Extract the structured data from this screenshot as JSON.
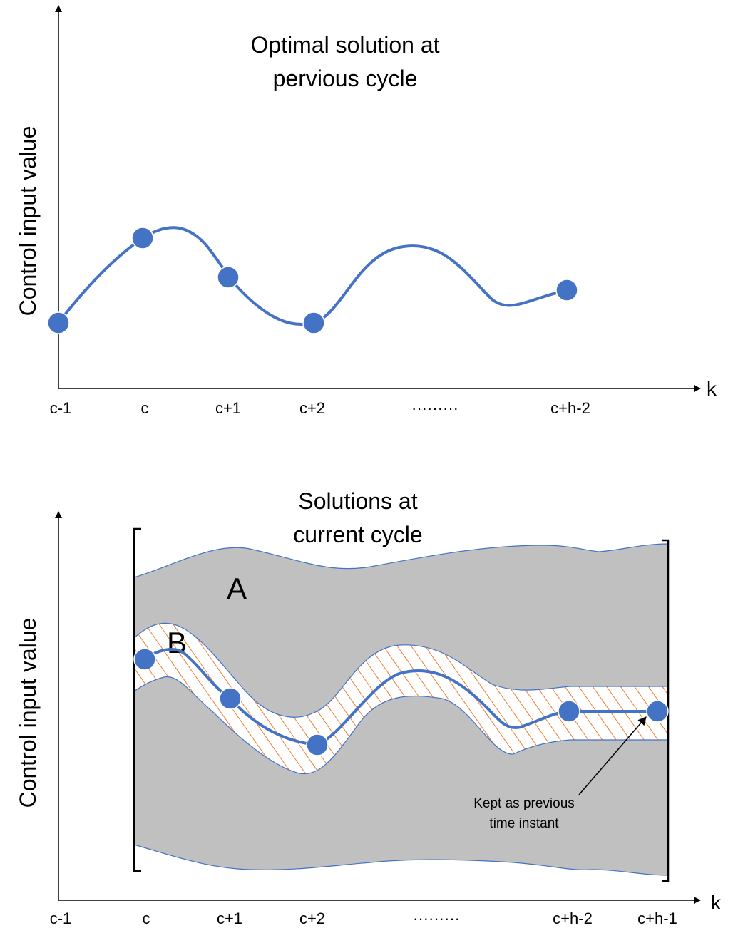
{
  "top_panel": {
    "title_line1": "Optimal solution at",
    "title_line2": "pervious cycle",
    "y_axis_label": "Control input value",
    "x_axis_label": "k",
    "ticks": [
      "c-1",
      "c",
      "c+1",
      "c+2",
      "·········",
      "c+h-2"
    ]
  },
  "bottom_panel": {
    "title_line1": "Solutions at",
    "title_line2": "current cycle",
    "y_axis_label": "Control input value",
    "x_axis_label": "k",
    "region_a_label": "A",
    "region_b_label": "B",
    "annotation_line1": "Kept as previous",
    "annotation_line2": "time instant",
    "ticks": [
      "c-1",
      "c",
      "c+1",
      "c+2",
      "·········",
      "c+h-2",
      "c+h-1"
    ]
  },
  "colors": {
    "curve": "#4472c4",
    "feasible_region": "#c0c0c0",
    "hatch": "#ed7d31",
    "axis": "#000000"
  }
}
